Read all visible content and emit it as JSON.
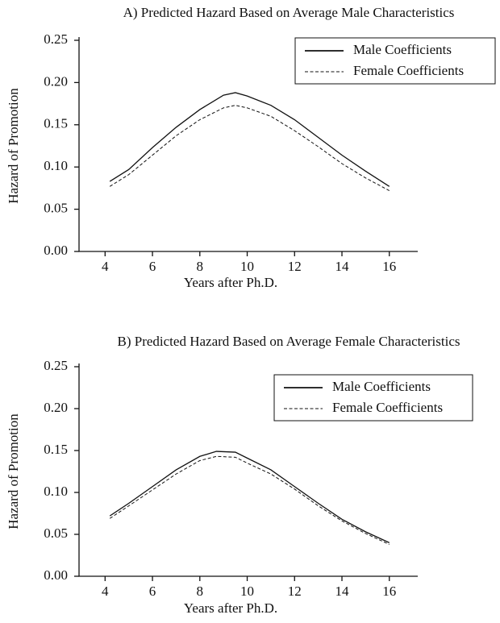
{
  "chart_data": [
    {
      "type": "line",
      "title": "A) Predicted Hazard Based on Average Male Characteristics",
      "x_label": "Years after Ph.D.",
      "y_label": "Hazard of Promotion",
      "x": [
        4.2,
        5,
        6,
        7,
        8,
        9,
        9.5,
        10,
        11,
        12,
        13,
        14,
        15,
        16
      ],
      "series": [
        {
          "name": "Male Coefficients",
          "color": "#111111",
          "style": "solid",
          "values": [
            0.083,
            0.097,
            0.123,
            0.147,
            0.168,
            0.185,
            0.188,
            0.184,
            0.173,
            0.156,
            0.135,
            0.114,
            0.095,
            0.077
          ]
        },
        {
          "name": "Female Coefficients",
          "color": "#111111",
          "style": "dashed",
          "values": [
            0.077,
            0.091,
            0.114,
            0.137,
            0.156,
            0.17,
            0.173,
            0.17,
            0.16,
            0.143,
            0.124,
            0.104,
            0.087,
            0.072
          ]
        }
      ],
      "xlim": [
        2.9,
        17.2
      ],
      "xticks": [
        4,
        6,
        8,
        10,
        12,
        14,
        16
      ],
      "ylim": [
        0,
        0.25
      ],
      "yticks": [
        {
          "value": 0,
          "label": "0.00"
        },
        0.05,
        {
          "value": 0.1,
          "label": "0.10"
        },
        0.15,
        {
          "value": 0.2,
          "label": "0.20"
        },
        0.25
      ],
      "grid": false,
      "legend": "upper right"
    },
    {
      "type": "line",
      "title": "B) Predicted Hazard Based on Average Female Characteristics",
      "x_label": "Years after Ph.D.",
      "y_label": "Hazard of Promotion",
      "x": [
        4.2,
        5,
        6,
        7,
        8,
        8.7,
        9.5,
        10,
        11,
        12,
        13,
        14,
        15,
        16
      ],
      "series": [
        {
          "name": "Male Coefficients",
          "color": "#111111",
          "style": "solid",
          "values": [
            0.072,
            0.087,
            0.107,
            0.127,
            0.143,
            0.149,
            0.148,
            0.141,
            0.127,
            0.107,
            0.087,
            0.068,
            0.053,
            0.04
          ]
        },
        {
          "name": "Female Coefficients",
          "color": "#111111",
          "style": "dashed",
          "values": [
            0.069,
            0.084,
            0.103,
            0.122,
            0.138,
            0.143,
            0.142,
            0.135,
            0.122,
            0.104,
            0.084,
            0.066,
            0.051,
            0.038
          ]
        }
      ],
      "xlim": [
        2.9,
        17.2
      ],
      "xticks": [
        4,
        6,
        8,
        10,
        12,
        14,
        16
      ],
      "ylim": [
        0,
        0.25
      ],
      "yticks": [
        {
          "value": 0,
          "label": "0.00"
        },
        0.05,
        {
          "value": 0.1,
          "label": "0.10"
        },
        0.15,
        {
          "value": 0.2,
          "label": "0.20"
        },
        0.25
      ],
      "grid": false,
      "legend": "upper right"
    }
  ]
}
